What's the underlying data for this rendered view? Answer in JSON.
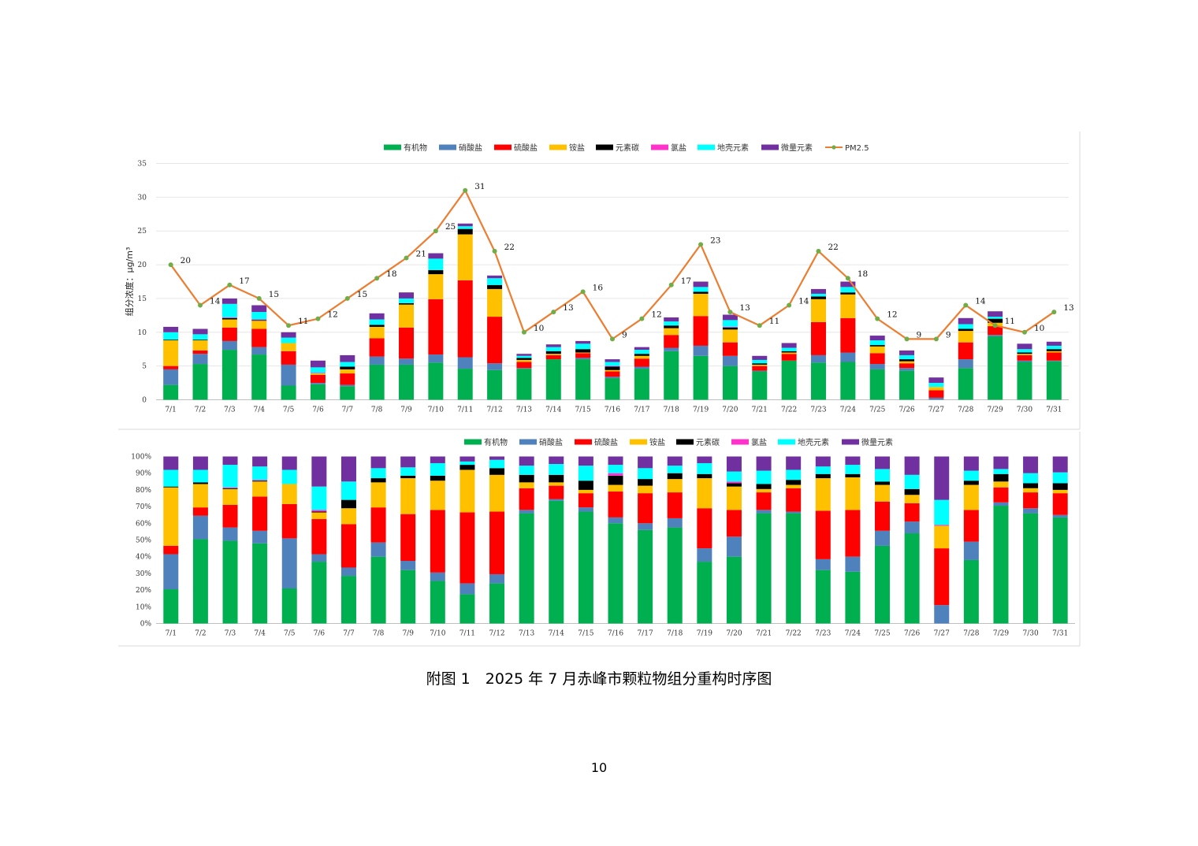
{
  "caption": "附图 1　2025 年 7 月赤峰市颗粒物组分重构时序图",
  "page_number": "10",
  "chart_data": [
    {
      "type": "bar",
      "stacked": true,
      "ylabel": "组分浓度：μg/m³",
      "ylim": [
        0,
        35
      ],
      "yticks": [
        0,
        5,
        10,
        15,
        20,
        25,
        30,
        35
      ],
      "grid": true,
      "legend_position": "top",
      "categories": [
        "7/1",
        "7/2",
        "7/3",
        "7/4",
        "7/5",
        "7/6",
        "7/7",
        "7/8",
        "7/9",
        "7/10",
        "7/11",
        "7/12",
        "7/13",
        "7/14",
        "7/15",
        "7/16",
        "7/17",
        "7/18",
        "7/19",
        "7/20",
        "7/21",
        "7/22",
        "7/23",
        "7/24",
        "7/25",
        "7/26",
        "7/27",
        "7/28",
        "7/29",
        "7/30",
        "7/31"
      ],
      "series": [
        {
          "name": "有机物",
          "color": "#00b050",
          "values": [
            2.2,
            5.3,
            7.4,
            6.7,
            2.1,
            2.3,
            2.0,
            5.2,
            5.2,
            5.5,
            4.6,
            4.4,
            4.6,
            6.0,
            6.0,
            3.2,
            4.6,
            7.2,
            6.5,
            5.0,
            4.2,
            5.8,
            5.5,
            5.6,
            4.5,
            4.3,
            0.0,
            4.7,
            9.4,
            5.6,
            5.7
          ]
        },
        {
          "name": "硝酸盐",
          "color": "#4f81bd",
          "values": [
            2.3,
            1.5,
            1.3,
            1.1,
            3.1,
            0.2,
            0.2,
            1.2,
            0.9,
            1.2,
            1.7,
            1.0,
            0.1,
            0.0,
            0.2,
            0.2,
            0.3,
            0.5,
            1.5,
            1.5,
            0.1,
            0.0,
            1.1,
            1.4,
            0.8,
            0.4,
            0.3,
            1.3,
            0.2,
            0.2,
            0.1
          ]
        },
        {
          "name": "硫酸盐",
          "color": "#ff0000",
          "values": [
            0.5,
            0.5,
            2.0,
            2.7,
            2.0,
            1.2,
            1.7,
            2.7,
            4.6,
            8.2,
            11.4,
            6.9,
            0.9,
            0.6,
            0.7,
            0.8,
            1.2,
            1.9,
            4.4,
            2.0,
            0.7,
            1.0,
            4.9,
            5.1,
            1.6,
            0.7,
            1.1,
            2.5,
            1.3,
            0.8,
            1.2
          ]
        },
        {
          "name": "铵盐",
          "color": "#ffc000",
          "values": [
            3.8,
            1.5,
            1.2,
            1.2,
            1.2,
            0.2,
            0.6,
            1.7,
            3.4,
            3.7,
            6.8,
            4.1,
            0.3,
            0.2,
            0.1,
            0.2,
            0.4,
            1.0,
            3.3,
            1.9,
            0.2,
            0.2,
            3.4,
            3.5,
            1.0,
            0.3,
            0.5,
            1.7,
            0.5,
            0.2,
            0.2
          ]
        },
        {
          "name": "元素碳",
          "color": "#000000",
          "values": [
            0.1,
            0.1,
            0.2,
            0.1,
            0.0,
            0.0,
            0.4,
            0.3,
            0.2,
            0.6,
            0.8,
            0.6,
            0.3,
            0.4,
            0.5,
            0.5,
            0.3,
            0.4,
            0.3,
            0.3,
            0.2,
            0.2,
            0.4,
            0.3,
            0.2,
            0.3,
            0.0,
            0.3,
            0.6,
            0.2,
            0.3
          ]
        },
        {
          "name": "氯盐",
          "color": "#ff33cc",
          "values": [
            0.0,
            0.0,
            0.1,
            0.1,
            0.0,
            0.1,
            0.0,
            0.0,
            0.0,
            0.0,
            0.0,
            0.0,
            0.0,
            0.0,
            0.0,
            0.1,
            0.0,
            0.0,
            0.0,
            0.1,
            0.0,
            0.0,
            0.0,
            0.0,
            0.0,
            0.0,
            0.0,
            0.0,
            0.0,
            0.0,
            0.0
          ]
        },
        {
          "name": "地壳元素",
          "color": "#00ffff",
          "values": [
            1.1,
            0.8,
            2.0,
            1.1,
            0.8,
            0.8,
            0.7,
            0.8,
            0.7,
            1.7,
            0.4,
            1.0,
            0.3,
            0.6,
            0.8,
            0.6,
            0.6,
            0.6,
            0.7,
            1.0,
            0.5,
            0.5,
            0.4,
            0.8,
            0.7,
            0.6,
            0.6,
            0.7,
            0.3,
            0.5,
            0.5
          ]
        },
        {
          "name": "微量元素",
          "color": "#7030a0",
          "values": [
            0.8,
            0.8,
            0.8,
            1.0,
            0.8,
            1.0,
            1.0,
            0.9,
            0.9,
            0.8,
            0.4,
            0.4,
            0.3,
            0.4,
            0.4,
            0.4,
            0.4,
            0.6,
            0.8,
            0.8,
            0.6,
            0.7,
            0.7,
            0.8,
            0.7,
            0.7,
            0.8,
            0.9,
            0.8,
            0.8,
            0.6
          ]
        }
      ],
      "line": {
        "name": "PM2.5",
        "color": "#ed7d31",
        "marker_color": "#70ad47",
        "values": [
          20,
          14,
          17,
          15,
          11,
          12,
          15,
          18,
          21,
          25,
          31,
          22,
          10,
          13,
          16,
          9,
          12,
          17,
          23,
          13,
          11,
          14,
          22,
          18,
          12,
          9,
          9,
          14,
          11,
          10,
          13
        ]
      }
    },
    {
      "type": "bar",
      "stacked": true,
      "percent": true,
      "ylim": [
        0,
        100
      ],
      "yticks": [
        "0%",
        "10%",
        "20%",
        "30%",
        "40%",
        "50%",
        "60%",
        "70%",
        "80%",
        "90%",
        "100%"
      ],
      "legend_position": "top",
      "categories": [
        "7/1",
        "7/2",
        "7/3",
        "7/4",
        "7/5",
        "7/6",
        "7/7",
        "7/8",
        "7/9",
        "7/10",
        "7/11",
        "7/12",
        "7/13",
        "7/14",
        "7/15",
        "7/16",
        "7/17",
        "7/18",
        "7/19",
        "7/20",
        "7/21",
        "7/22",
        "7/23",
        "7/24",
        "7/25",
        "7/26",
        "7/27",
        "7/28",
        "7/29",
        "7/30",
        "7/31"
      ],
      "series": [
        {
          "name": "有机物",
          "color": "#00b050",
          "values": [
            20.5,
            50.5,
            49.5,
            48,
            21,
            37,
            28.5,
            40,
            32,
            25.5,
            17.5,
            24,
            66,
            73.5,
            67,
            60,
            56,
            57.5,
            37,
            40,
            66,
            66,
            32,
            31,
            46.5,
            54,
            0,
            38,
            70.5,
            66,
            63.5
          ]
        },
        {
          "name": "硝酸盐",
          "color": "#4f81bd",
          "values": [
            21,
            14,
            8,
            7.5,
            30,
            4.5,
            5,
            8.5,
            5.5,
            5,
            6.5,
            5.5,
            2,
            1,
            2.5,
            3.5,
            4,
            5.5,
            8,
            12,
            2,
            1,
            6.5,
            9,
            9,
            7,
            11,
            11,
            2,
            3,
            1.5
          ]
        },
        {
          "name": "硫酸盐",
          "color": "#ff0000",
          "values": [
            5,
            5,
            13.5,
            20.5,
            20.5,
            21,
            26,
            21,
            28,
            37.5,
            42.5,
            37.5,
            13,
            8,
            8.5,
            15.5,
            18,
            15.5,
            24,
            16,
            10.5,
            14,
            29,
            28,
            17.5,
            11,
            34,
            19,
            9,
            9.5,
            13
          ]
        },
        {
          "name": "铵盐",
          "color": "#ffc000",
          "values": [
            35,
            14,
            9.5,
            9,
            12,
            4,
            9.5,
            15,
            21.5,
            17.5,
            25.5,
            22,
            3.5,
            2,
            2,
            4,
            4.5,
            8,
            18,
            14,
            2,
            2,
            19.5,
            19.5,
            10,
            5,
            13.5,
            15,
            3.5,
            2.5,
            2
          ]
        },
        {
          "name": "元素碳",
          "color": "#000000",
          "values": [
            0.5,
            1,
            0.5,
            0.5,
            0,
            0.5,
            5,
            2.5,
            1.5,
            3,
            3,
            4,
            4.5,
            4.5,
            5.5,
            5.5,
            4,
            3.5,
            2.5,
            2,
            3,
            3,
            2.5,
            2,
            2,
            3.5,
            0,
            2.5,
            4.5,
            3,
            4
          ]
        },
        {
          "name": "氯盐",
          "color": "#ff33cc",
          "values": [
            0,
            0,
            0.5,
            0.5,
            0,
            1,
            0,
            0,
            0,
            0,
            0,
            0,
            0,
            0,
            0,
            1.5,
            0,
            0,
            0,
            1,
            0,
            0,
            0,
            0,
            0,
            0,
            0.5,
            0,
            0,
            0,
            0
          ]
        },
        {
          "name": "地壳元素",
          "color": "#00ffff",
          "values": [
            10,
            7.5,
            13.5,
            8,
            8.5,
            14,
            11,
            6,
            5,
            7.5,
            2,
            5,
            5.5,
            6.5,
            9,
            5,
            6.5,
            4.5,
            6.5,
            6,
            8,
            6,
            4.5,
            5.5,
            7.5,
            8.5,
            15,
            6,
            3,
            6,
            6.5
          ]
        },
        {
          "name": "微量元素",
          "color": "#7030a0",
          "values": [
            8,
            8,
            5,
            6,
            8,
            18,
            15,
            7,
            6.5,
            4,
            3,
            2,
            5.5,
            4.5,
            5.5,
            5,
            7,
            5.5,
            4,
            9,
            8.5,
            8,
            6,
            5,
            7.5,
            11,
            26,
            8.5,
            7.5,
            10,
            9.5
          ]
        }
      ]
    }
  ]
}
